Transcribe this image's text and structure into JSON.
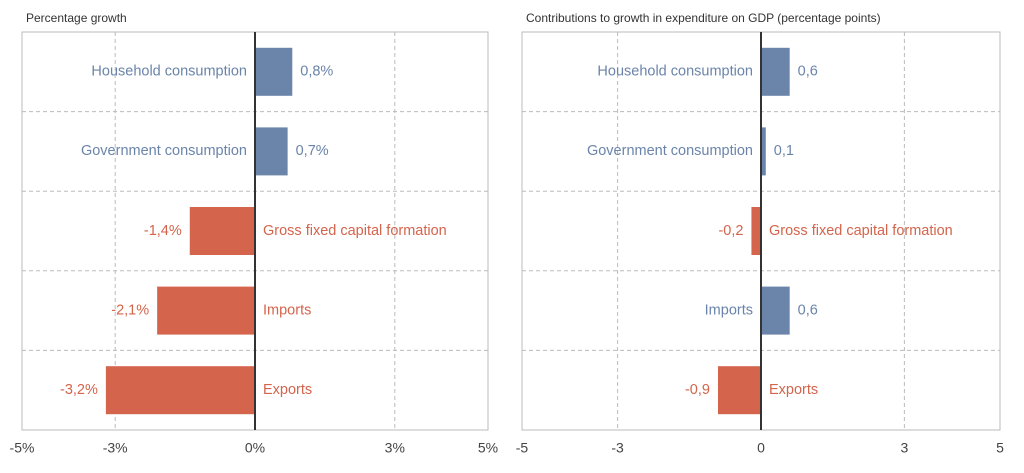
{
  "chart_data": [
    {
      "type": "bar",
      "orientation": "horizontal",
      "title": "Percentage growth",
      "categories": [
        "Household consumption",
        "Government consumption",
        "Gross fixed capital formation",
        "Imports",
        "Exports"
      ],
      "values": [
        0.8,
        0.7,
        -1.4,
        -2.1,
        -3.2
      ],
      "value_labels": [
        "0,8%",
        "0,7%",
        "-1,4%",
        "-2,1%",
        "-3,2%"
      ],
      "colors": [
        "#6a84aa",
        "#6a84aa",
        "#d4644c",
        "#d4644c",
        "#d4644c"
      ],
      "xlim": [
        -5,
        5
      ],
      "xticks": [
        {
          "value": -5,
          "label": "-5%"
        },
        {
          "value": -3,
          "label": "-3%"
        },
        {
          "value": 0,
          "label": "0%"
        },
        {
          "value": 3,
          "label": "3%"
        },
        {
          "value": 5,
          "label": "5%"
        }
      ],
      "grid": true
    },
    {
      "type": "bar",
      "orientation": "horizontal",
      "title": "Contributions to growth in expenditure on GDP (percentage points)",
      "categories": [
        "Household consumption",
        "Government consumption",
        "Gross fixed capital formation",
        "Imports",
        "Exports"
      ],
      "values": [
        0.6,
        0.1,
        -0.2,
        0.6,
        -0.9
      ],
      "value_labels": [
        "0,6",
        "0,1",
        "-0,2",
        "0,6",
        "-0,9"
      ],
      "colors": [
        "#6a84aa",
        "#6a84aa",
        "#d4644c",
        "#6a84aa",
        "#d4644c"
      ],
      "xlim": [
        -5,
        5
      ],
      "xticks": [
        -5,
        -3,
        0,
        3,
        5
      ],
      "grid": true
    }
  ]
}
